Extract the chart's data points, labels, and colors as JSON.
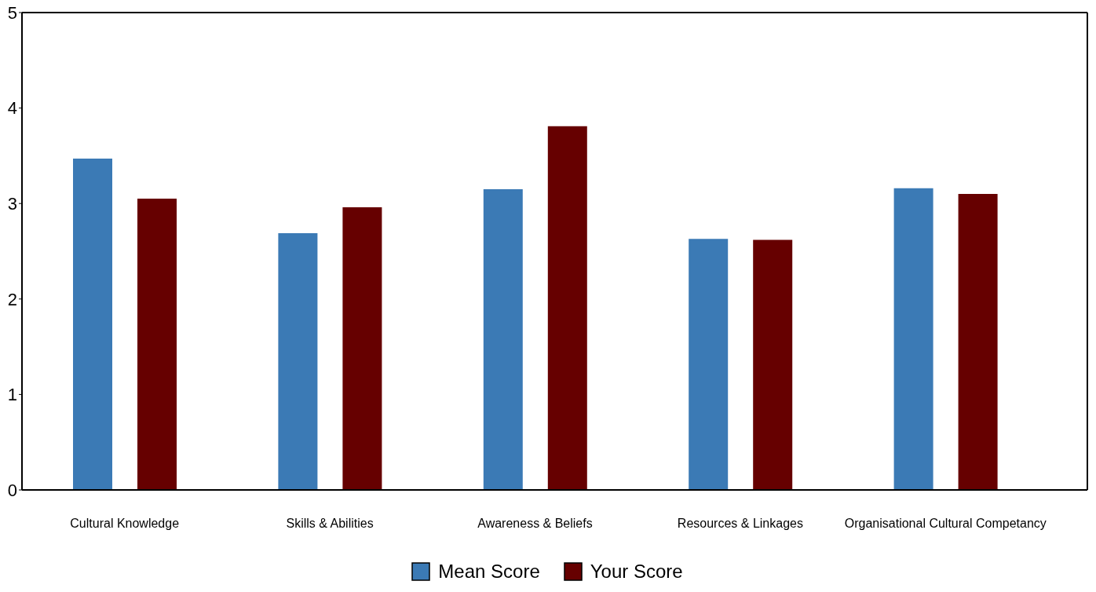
{
  "chart_data": {
    "type": "bar",
    "categories": [
      "Cultural Knowledge",
      "Skills & Abilities",
      "Awareness & Beliefs",
      "Resources & Linkages",
      "Organisational Cultural Competancy"
    ],
    "series": [
      {
        "name": "Mean Score",
        "color": "#3b7ab5",
        "values": [
          3.47,
          2.69,
          3.15,
          2.63,
          3.16
        ]
      },
      {
        "name": "Your Score",
        "color": "#660000",
        "values": [
          3.05,
          2.96,
          3.81,
          2.62,
          3.1
        ]
      }
    ],
    "ylim": [
      0,
      5
    ],
    "yticks": [
      0,
      1,
      2,
      3,
      4,
      5
    ],
    "grid": false,
    "legend": "bottom"
  }
}
